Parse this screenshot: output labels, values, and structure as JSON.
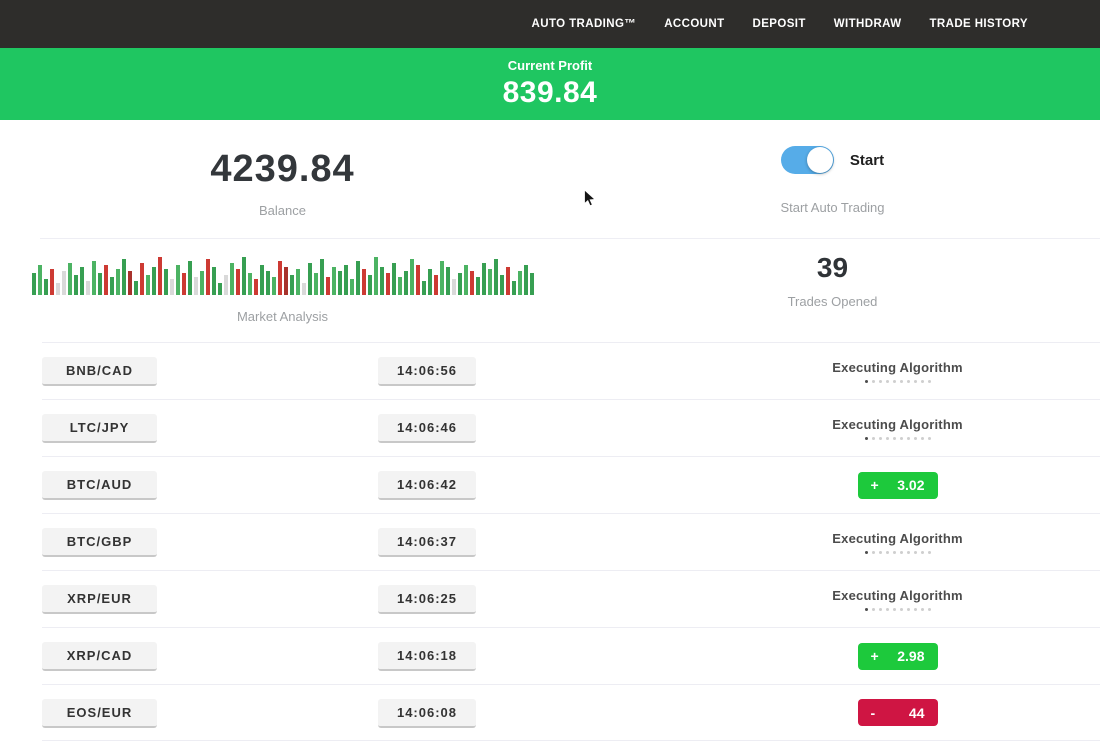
{
  "navbar": {
    "items": [
      {
        "label": "AUTO TRADING™"
      },
      {
        "label": "ACCOUNT"
      },
      {
        "label": "DEPOSIT"
      },
      {
        "label": "WITHDRAW"
      },
      {
        "label": "TRADE HISTORY"
      }
    ]
  },
  "profit_banner": {
    "label": "Current Profit",
    "value": "839.84"
  },
  "balance": {
    "value": "4239.84",
    "label": "Balance"
  },
  "auto_trading": {
    "toggle_label": "Start",
    "sub_label": "Start Auto Trading",
    "enabled": true
  },
  "market_analysis": {
    "label": "Market Analysis"
  },
  "trades_opened": {
    "value": "39",
    "label": "Trades Opened"
  },
  "executing_status_label": "Executing Algorithm",
  "colors": {
    "navbar_dark": "#2e2d2b",
    "banner_green": "#1fc661",
    "badge_green": "#1dc93c",
    "badge_red": "#cf1543",
    "toggle_blue": "#56ace8"
  },
  "market_bars": [
    [
      22,
      "g"
    ],
    [
      30,
      "G"
    ],
    [
      16,
      "g"
    ],
    [
      26,
      "r"
    ],
    [
      12,
      "l"
    ],
    [
      24,
      "l"
    ],
    [
      32,
      "G"
    ],
    [
      20,
      "g"
    ],
    [
      28,
      "g"
    ],
    [
      14,
      "l"
    ],
    [
      34,
      "G"
    ],
    [
      22,
      "g"
    ],
    [
      30,
      "r"
    ],
    [
      18,
      "g"
    ],
    [
      26,
      "G"
    ],
    [
      36,
      "g"
    ],
    [
      24,
      "R"
    ],
    [
      14,
      "g"
    ],
    [
      32,
      "r"
    ],
    [
      20,
      "G"
    ],
    [
      28,
      "g"
    ],
    [
      38,
      "r"
    ],
    [
      26,
      "g"
    ],
    [
      16,
      "l"
    ],
    [
      30,
      "G"
    ],
    [
      22,
      "r"
    ],
    [
      34,
      "g"
    ],
    [
      18,
      "l"
    ],
    [
      24,
      "G"
    ],
    [
      36,
      "r"
    ],
    [
      28,
      "g"
    ],
    [
      12,
      "g"
    ],
    [
      20,
      "l"
    ],
    [
      32,
      "G"
    ],
    [
      26,
      "r"
    ],
    [
      38,
      "g"
    ],
    [
      22,
      "G"
    ],
    [
      16,
      "r"
    ],
    [
      30,
      "g"
    ],
    [
      24,
      "g"
    ],
    [
      18,
      "G"
    ],
    [
      34,
      "r"
    ],
    [
      28,
      "R"
    ],
    [
      20,
      "g"
    ],
    [
      26,
      "G"
    ],
    [
      12,
      "l"
    ],
    [
      32,
      "g"
    ],
    [
      22,
      "G"
    ],
    [
      36,
      "g"
    ],
    [
      18,
      "r"
    ],
    [
      28,
      "G"
    ],
    [
      24,
      "g"
    ],
    [
      30,
      "g"
    ],
    [
      16,
      "G"
    ],
    [
      34,
      "g"
    ],
    [
      26,
      "r"
    ],
    [
      20,
      "g"
    ],
    [
      38,
      "G"
    ],
    [
      28,
      "g"
    ],
    [
      22,
      "r"
    ],
    [
      32,
      "g"
    ],
    [
      18,
      "G"
    ],
    [
      24,
      "g"
    ],
    [
      36,
      "G"
    ],
    [
      30,
      "r"
    ],
    [
      14,
      "g"
    ],
    [
      26,
      "g"
    ],
    [
      20,
      "r"
    ],
    [
      34,
      "G"
    ],
    [
      28,
      "g"
    ],
    [
      16,
      "l"
    ],
    [
      22,
      "g"
    ],
    [
      30,
      "G"
    ],
    [
      24,
      "r"
    ],
    [
      18,
      "g"
    ],
    [
      32,
      "g"
    ],
    [
      26,
      "G"
    ],
    [
      36,
      "g"
    ],
    [
      20,
      "g"
    ],
    [
      28,
      "r"
    ],
    [
      14,
      "g"
    ],
    [
      24,
      "G"
    ],
    [
      30,
      "g"
    ],
    [
      22,
      "g"
    ]
  ],
  "trades": [
    {
      "pair": "BNB/CAD",
      "time": "14:06:56",
      "status": "executing"
    },
    {
      "pair": "LTC/JPY",
      "time": "14:06:46",
      "status": "executing"
    },
    {
      "pair": "BTC/AUD",
      "time": "14:06:42",
      "status": "profit",
      "sign": "+",
      "value": "3.02"
    },
    {
      "pair": "BTC/GBP",
      "time": "14:06:37",
      "status": "executing"
    },
    {
      "pair": "XRP/EUR",
      "time": "14:06:25",
      "status": "executing"
    },
    {
      "pair": "XRP/CAD",
      "time": "14:06:18",
      "status": "profit",
      "sign": "+",
      "value": "2.98"
    },
    {
      "pair": "EOS/EUR",
      "time": "14:06:08",
      "status": "loss",
      "sign": "-",
      "value": "44"
    }
  ]
}
